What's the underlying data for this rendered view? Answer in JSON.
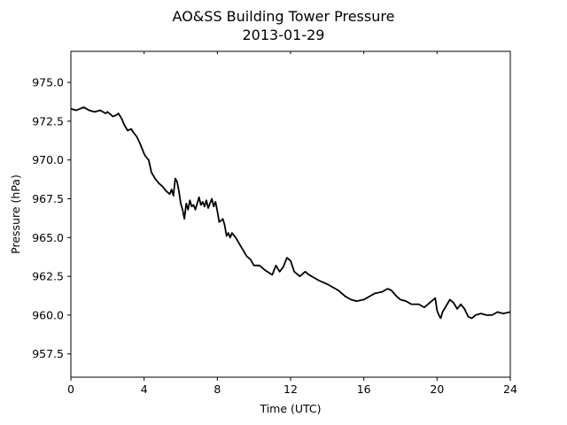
{
  "chart_data": {
    "type": "line",
    "title": "AO&SS Building Tower Pressure",
    "subtitle": "2013-01-29",
    "xlabel": "Time (UTC)",
    "ylabel": "Pressure (hPa)",
    "xlim": [
      0,
      24
    ],
    "ylim": [
      956.0,
      977.0
    ],
    "xticks": [
      0,
      4,
      8,
      12,
      16,
      20,
      24
    ],
    "xtick_labels": [
      "0",
      "4",
      "8",
      "12",
      "16",
      "20",
      "24"
    ],
    "yticks": [
      957.5,
      960.0,
      962.5,
      965.0,
      967.5,
      970.0,
      972.5,
      975.0
    ],
    "ytick_labels": [
      "957.5",
      "960.0",
      "962.5",
      "965.0",
      "967.5",
      "970.0",
      "972.5",
      "975.0"
    ],
    "grid": false,
    "series": [
      {
        "color": "#000000",
        "x": [
          0.0,
          0.3,
          0.5,
          0.7,
          1.0,
          1.3,
          1.6,
          1.9,
          2.0,
          2.2,
          2.3,
          2.5,
          2.6,
          2.8,
          2.9,
          3.0,
          3.1,
          3.3,
          3.4,
          3.6,
          3.8,
          4.0,
          4.1,
          4.25,
          4.4,
          4.6,
          4.8,
          5.0,
          5.2,
          5.4,
          5.5,
          5.6,
          5.7,
          5.8,
          5.9,
          6.0,
          6.1,
          6.2,
          6.3,
          6.4,
          6.5,
          6.6,
          6.7,
          6.8,
          7.0,
          7.1,
          7.2,
          7.3,
          7.4,
          7.5,
          7.6,
          7.7,
          7.8,
          7.9,
          8.0,
          8.1,
          8.3,
          8.4,
          8.5,
          8.6,
          8.7,
          8.8,
          9.0,
          9.2,
          9.4,
          9.6,
          9.8,
          10.0,
          10.3,
          10.6,
          11.0,
          11.2,
          11.4,
          11.6,
          11.8,
          12.0,
          12.2,
          12.5,
          12.8,
          13.0,
          13.3,
          13.6,
          14.0,
          14.3,
          14.6,
          15.0,
          15.3,
          15.6,
          16.0,
          16.3,
          16.6,
          17.0,
          17.3,
          17.5,
          17.8,
          18.0,
          18.3,
          18.6,
          19.0,
          19.3,
          19.6,
          19.9,
          20.0,
          20.1,
          20.2,
          20.3,
          20.5,
          20.7,
          20.9,
          21.1,
          21.3,
          21.5,
          21.7,
          21.9,
          22.1,
          22.4,
          22.7,
          23.0,
          23.3,
          23.6,
          24.0
        ],
        "y": [
          973.3,
          973.2,
          973.3,
          973.4,
          973.2,
          973.1,
          973.2,
          973.0,
          973.1,
          972.9,
          972.8,
          972.9,
          973.0,
          972.6,
          972.3,
          972.1,
          971.9,
          972.0,
          971.8,
          971.5,
          971.0,
          970.4,
          970.2,
          970.0,
          969.2,
          968.8,
          968.5,
          968.3,
          968.0,
          967.8,
          968.1,
          967.7,
          968.8,
          968.6,
          968.0,
          967.2,
          966.8,
          966.2,
          967.2,
          966.8,
          967.4,
          967.0,
          967.1,
          966.8,
          967.6,
          967.1,
          967.3,
          967.0,
          967.4,
          966.9,
          967.2,
          967.5,
          967.0,
          967.3,
          966.7,
          966.0,
          966.2,
          965.8,
          965.1,
          965.3,
          965.0,
          965.3,
          965.0,
          964.6,
          964.2,
          963.8,
          963.6,
          963.2,
          963.2,
          962.9,
          962.6,
          963.2,
          962.8,
          963.1,
          963.7,
          963.5,
          962.8,
          962.5,
          962.8,
          962.6,
          962.4,
          962.2,
          962.0,
          961.8,
          961.6,
          961.2,
          961.0,
          960.9,
          961.0,
          961.2,
          961.4,
          961.5,
          961.7,
          961.6,
          961.2,
          961.0,
          960.9,
          960.7,
          960.7,
          960.5,
          960.8,
          961.1,
          960.3,
          960.0,
          959.8,
          960.2,
          960.6,
          961.0,
          960.8,
          960.4,
          960.7,
          960.4,
          959.9,
          959.8,
          960.0,
          960.1,
          960.0,
          960.0,
          960.2,
          960.1,
          960.2
        ]
      }
    ]
  }
}
